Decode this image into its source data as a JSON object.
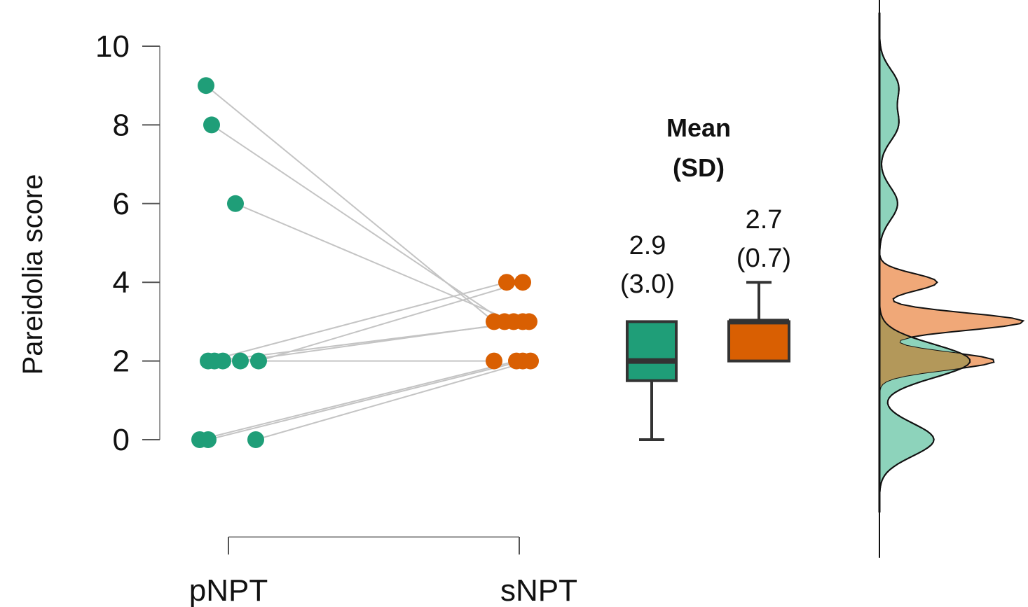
{
  "chart_data": {
    "type": "raincloud",
    "ylabel": "Pareidolia score",
    "ylim": [
      0,
      10
    ],
    "yticks": [
      0,
      2,
      4,
      6,
      8,
      10
    ],
    "conditions": [
      "pNPT",
      "sNPT"
    ],
    "summary_title": "Mean\n(SD)",
    "groups": [
      {
        "name": "pNPT",
        "color": "#1f9e78",
        "density_color": "#8dd3bb",
        "values": [
          9,
          8,
          6,
          2,
          2,
          2,
          2,
          2,
          0,
          0,
          0
        ],
        "box": {
          "min": 0,
          "q1": 1.5,
          "median": 2,
          "q3": 3,
          "max": 3
        },
        "mean_label": "2.9",
        "sd_label": "(3.0)"
      },
      {
        "name": "sNPT",
        "color": "#d95f02",
        "density_color": "#f0a878",
        "values": [
          3,
          3,
          3,
          4,
          2,
          3,
          4,
          3,
          2,
          2,
          2
        ],
        "box": {
          "min": 2,
          "q1": 2,
          "median": 3,
          "q3": 3,
          "max": 4
        },
        "mean_label": "2.7",
        "sd_label": "(0.7)"
      }
    ]
  }
}
